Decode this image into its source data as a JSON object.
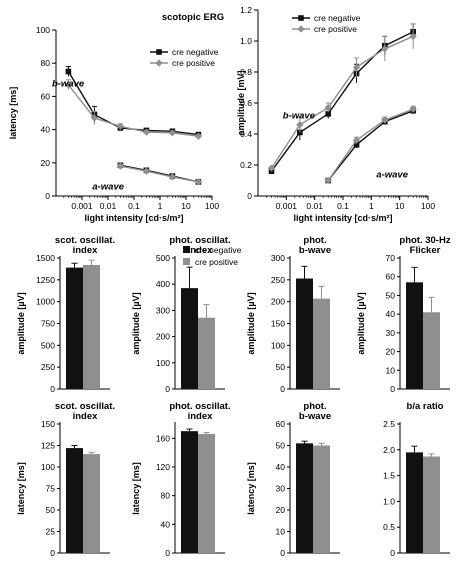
{
  "figure_title": "scotopic ERG",
  "colors": {
    "cre_negative": "#111111",
    "cre_positive": "#8f8f8f"
  },
  "chart_data": [
    {
      "id": "latency",
      "type": "line",
      "x_scale": "log",
      "xlim": [
        0.0001,
        100
      ],
      "ylim": [
        0,
        100
      ],
      "x_ticks": [
        "0.001",
        "0.01",
        "0.1",
        "1",
        "10",
        "100"
      ],
      "y_ticks": [
        "0",
        "20",
        "40",
        "60",
        "80",
        "100"
      ],
      "xlabel": "light intensity [cd·s/m²]",
      "ylabel": "latency [ms]",
      "legend_position": "top-right",
      "annotations": [
        "b-wave",
        "a-wave"
      ],
      "series": [
        {
          "name": "cre negative",
          "group": "b-wave",
          "x": [
            0.0003,
            0.003,
            0.03,
            0.3,
            3,
            30
          ],
          "y": [
            75,
            49,
            41,
            39.5,
            39,
            37
          ],
          "err": [
            3,
            5,
            1.5,
            1,
            1,
            1
          ]
        },
        {
          "name": "cre positive",
          "group": "b-wave",
          "x": [
            0.0003,
            0.003,
            0.03,
            0.3,
            3,
            30
          ],
          "y": [
            67,
            47,
            42,
            38.5,
            38,
            36
          ],
          "err": [
            3,
            4,
            1.5,
            1,
            1,
            1
          ]
        },
        {
          "name": "cre negative",
          "group": "a-wave",
          "x": [
            0.03,
            0.3,
            3,
            30
          ],
          "y": [
            18.5,
            15.5,
            12,
            8.5
          ],
          "err": [
            1,
            0.8,
            0.5,
            0.5
          ]
        },
        {
          "name": "cre positive",
          "group": "a-wave",
          "x": [
            0.03,
            0.3,
            3,
            30
          ],
          "y": [
            18,
            15,
            11.5,
            8.5
          ],
          "err": [
            1,
            0.8,
            0.5,
            0.5
          ]
        }
      ]
    },
    {
      "id": "amplitude",
      "type": "line",
      "x_scale": "log",
      "xlim": [
        0.0001,
        100
      ],
      "ylim": [
        0,
        1.2
      ],
      "x_ticks": [
        "0.001",
        "0.01",
        "0.1",
        "1",
        "10",
        "100"
      ],
      "y_ticks": [
        "0",
        "0.2",
        "0.4",
        "0.6",
        "0.8",
        "1.0",
        "1.2"
      ],
      "xlabel": "light intensity [cd·s/m²]",
      "ylabel": "amplitude [mV]",
      "legend_position": "top-left",
      "annotations": [
        "b-wave",
        "a-wave"
      ],
      "series": [
        {
          "name": "cre negative",
          "group": "b-wave",
          "x": [
            0.0003,
            0.003,
            0.03,
            0.3,
            3,
            30
          ],
          "y": [
            0.16,
            0.41,
            0.53,
            0.79,
            0.97,
            1.06
          ],
          "err": [
            0.01,
            0.05,
            0.03,
            0.06,
            0.06,
            0.05
          ]
        },
        {
          "name": "cre positive",
          "group": "b-wave",
          "x": [
            0.0003,
            0.003,
            0.03,
            0.3,
            3,
            30
          ],
          "y": [
            0.18,
            0.46,
            0.57,
            0.83,
            0.95,
            1.03
          ],
          "err": [
            0.01,
            0.05,
            0.03,
            0.06,
            0.08,
            0.08
          ]
        },
        {
          "name": "cre negative",
          "group": "a-wave",
          "x": [
            0.03,
            0.3,
            3,
            30
          ],
          "y": [
            0.1,
            0.33,
            0.48,
            0.55
          ],
          "err": [
            0.01,
            0.02,
            0.02,
            0.02
          ]
        },
        {
          "name": "cre positive",
          "group": "a-wave",
          "x": [
            0.03,
            0.3,
            3,
            30
          ],
          "y": [
            0.1,
            0.36,
            0.49,
            0.56
          ],
          "err": [
            0.01,
            0.02,
            0.02,
            0.02
          ]
        }
      ]
    },
    {
      "id": "scot-osc-amp",
      "type": "bar",
      "title": [
        "scot. oscillat.",
        "index"
      ],
      "ylabel": "amplitude [µV]",
      "ylim": [
        0,
        1500
      ],
      "y_ticks": [
        "0",
        "250",
        "500",
        "750",
        "1000",
        "1250",
        "1500"
      ],
      "series": [
        {
          "name": "cre negative",
          "values": [
            1390
          ],
          "err": [
            50
          ]
        },
        {
          "name": "cre positive",
          "values": [
            1420
          ],
          "err": [
            55
          ]
        }
      ]
    },
    {
      "id": "phot-osc-amp",
      "type": "bar",
      "title": [
        "phot. oscillat.",
        "index"
      ],
      "ylabel": "amplitude [µV]",
      "ylim": [
        0,
        500
      ],
      "y_ticks": [
        "0",
        "100",
        "200",
        "300",
        "400",
        "500"
      ],
      "series": [
        {
          "name": "cre negative",
          "values": [
            385
          ],
          "err": [
            80
          ]
        },
        {
          "name": "cre positive",
          "values": [
            272
          ],
          "err": [
            50
          ]
        }
      ]
    },
    {
      "id": "phot-bwave-amp",
      "type": "bar",
      "title": [
        "phot.",
        "b-wave"
      ],
      "ylabel": "amplitude [µV]",
      "ylim": [
        0,
        300
      ],
      "y_ticks": [
        "0",
        "50",
        "100",
        "150",
        "200",
        "250",
        "300"
      ],
      "series": [
        {
          "name": "cre negative",
          "values": [
            253
          ],
          "err": [
            28
          ]
        },
        {
          "name": "cre positive",
          "values": [
            207
          ],
          "err": [
            28
          ]
        }
      ]
    },
    {
      "id": "phot-flicker-amp",
      "type": "bar",
      "title": [
        "phot. 30-Hz",
        "Flicker"
      ],
      "ylabel": "amplitude [µV]",
      "ylim": [
        0,
        70
      ],
      "y_ticks": [
        "0",
        "10",
        "20",
        "30",
        "40",
        "50",
        "60",
        "70"
      ],
      "series": [
        {
          "name": "cre negative",
          "values": [
            57
          ],
          "err": [
            8
          ]
        },
        {
          "name": "cre positive",
          "values": [
            41
          ],
          "err": [
            8
          ]
        }
      ]
    },
    {
      "id": "scot-osc-lat",
      "type": "bar",
      "title": [
        "scot. oscillat.",
        "index"
      ],
      "ylabel": "latency [ms]",
      "ylim": [
        0,
        150
      ],
      "y_ticks": [
        "0",
        "25",
        "50",
        "75",
        "100",
        "125",
        "150"
      ],
      "series": [
        {
          "name": "cre negative",
          "values": [
            122
          ],
          "err": [
            3
          ]
        },
        {
          "name": "cre positive",
          "values": [
            115
          ],
          "err": [
            2
          ]
        }
      ]
    },
    {
      "id": "phot-osc-lat",
      "type": "bar",
      "title": [
        "phot. oscillat.",
        "index"
      ],
      "ylabel": "latency [ms]",
      "ylim": [
        0,
        180
      ],
      "y_ticks": [
        "0",
        "40",
        "80",
        "120",
        "160"
      ],
      "series": [
        {
          "name": "cre negative",
          "values": [
            170
          ],
          "err": [
            3
          ]
        },
        {
          "name": "cre positive",
          "values": [
            166
          ],
          "err": [
            2
          ]
        }
      ]
    },
    {
      "id": "phot-bwave-lat",
      "type": "bar",
      "title": [
        "phot.",
        "b-wave"
      ],
      "ylabel": "latency [ms]",
      "ylim": [
        0,
        60
      ],
      "y_ticks": [
        "0",
        "10",
        "20",
        "30",
        "40",
        "50",
        "60"
      ],
      "series": [
        {
          "name": "cre negative",
          "values": [
            51
          ],
          "err": [
            1
          ]
        },
        {
          "name": "cre positive",
          "values": [
            50
          ],
          "err": [
            1
          ]
        }
      ]
    },
    {
      "id": "ba-ratio",
      "type": "bar",
      "title": [
        "b/a ratio",
        ""
      ],
      "ylabel": "",
      "ylim": [
        0,
        2.5
      ],
      "y_ticks": [
        "0",
        "0.5",
        "1.0",
        "1.5",
        "2.0",
        "2.5"
      ],
      "series": [
        {
          "name": "cre negative",
          "values": [
            1.95
          ],
          "err": [
            0.12
          ]
        },
        {
          "name": "cre positive",
          "values": [
            1.87
          ],
          "err": [
            0.05
          ]
        }
      ]
    }
  ],
  "bar_legend": [
    "cre negative",
    "cre positive"
  ]
}
